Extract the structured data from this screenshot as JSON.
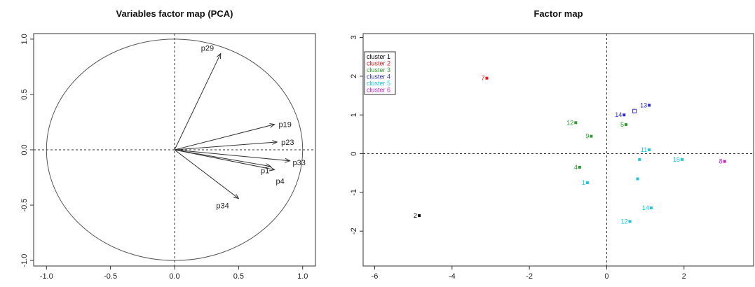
{
  "chart_data": [
    {
      "type": "scatter",
      "title": "Variables factor map (PCA)",
      "xlim": [
        -1.1,
        1.1
      ],
      "ylim": [
        -1.05,
        1.05
      ],
      "xticks": [
        "-1.0",
        "-0.5",
        "0.0",
        "0.5",
        "1.0"
      ],
      "yticks": [
        "-1.0",
        "-0.5",
        "0.0",
        "0.5",
        "1.0"
      ],
      "xtick_values": [
        -1.0,
        -0.5,
        0.0,
        0.5,
        1.0
      ],
      "ytick_values": [
        -1.0,
        -0.5,
        0.0,
        0.5,
        1.0
      ],
      "unit_circle": true,
      "reference_lines": [
        0,
        0
      ],
      "arrows": [
        {
          "name": "p29",
          "x": 0.36,
          "y": 0.87
        },
        {
          "name": "p19",
          "x": 0.78,
          "y": 0.23
        },
        {
          "name": "p23",
          "x": 0.8,
          "y": 0.07
        },
        {
          "name": "p33",
          "x": 0.9,
          "y": -0.1
        },
        {
          "name": "p1",
          "x": 0.75,
          "y": -0.15
        },
        {
          "name": "p4",
          "x": 0.78,
          "y": -0.18
        },
        {
          "name": "p34",
          "x": 0.5,
          "y": -0.44
        }
      ]
    },
    {
      "type": "scatter",
      "title": "Factor map",
      "xlim": [
        -6.3,
        3.8
      ],
      "ylim": [
        -2.9,
        3.1
      ],
      "xticks": [
        "-6",
        "-4",
        "-2",
        "0",
        "2"
      ],
      "yticks": [
        "-2",
        "-1",
        "0",
        "1",
        "2",
        "3"
      ],
      "xtick_values": [
        -6,
        -4,
        -2,
        0,
        2
      ],
      "ytick_values": [
        -2,
        -1,
        0,
        1,
        2,
        3
      ],
      "reference_lines": [
        0,
        0
      ],
      "legend": {
        "position": "top-left",
        "entries": [
          {
            "label": "cluster 1",
            "color": "#000000"
          },
          {
            "label": "cluster 2",
            "color": "#e41a1c"
          },
          {
            "label": "cluster 3",
            "color": "#2ca02c"
          },
          {
            "label": "cluster 4",
            "color": "#2b2bd6"
          },
          {
            "label": "cluster 5",
            "color": "#19c8dc"
          },
          {
            "label": "cluster 6",
            "color": "#d21ed2"
          }
        ]
      },
      "series": [
        {
          "name": "cluster 1",
          "color": "#000000",
          "points": [
            {
              "label": "2",
              "x": -4.85,
              "y": -1.6
            }
          ]
        },
        {
          "name": "cluster 2",
          "color": "#e41a1c",
          "points": [
            {
              "label": "7",
              "x": -3.1,
              "y": 1.95
            }
          ]
        },
        {
          "name": "cluster 3",
          "color": "#2ca02c",
          "points": [
            {
              "label": "12",
              "x": -0.8,
              "y": 0.8
            },
            {
              "label": "9",
              "x": -0.4,
              "y": 0.45
            },
            {
              "label": "5",
              "x": 0.5,
              "y": 0.75
            },
            {
              "label": "4",
              "x": -0.7,
              "y": -0.35
            }
          ]
        },
        {
          "name": "cluster 4",
          "color": "#2b2bd6",
          "points": [
            {
              "label": "14",
              "x": 0.45,
              "y": 1.0
            },
            {
              "label": "",
              "x": 0.72,
              "y": 1.1
            },
            {
              "label": "13",
              "x": 1.1,
              "y": 1.25
            }
          ]
        },
        {
          "name": "cluster 5",
          "color": "#19c8dc",
          "points": [
            {
              "label": "1",
              "x": -0.5,
              "y": -0.75
            },
            {
              "label": "11",
              "x": 1.1,
              "y": 0.1
            },
            {
              "label": "",
              "x": 0.85,
              "y": -0.15
            },
            {
              "label": "15",
              "x": 1.95,
              "y": -0.15
            },
            {
              "label": "",
              "x": 0.8,
              "y": -0.65
            },
            {
              "label": "14",
              "x": 1.15,
              "y": -1.4
            },
            {
              "label": "12",
              "x": 0.6,
              "y": -1.75
            }
          ]
        },
        {
          "name": "cluster 6",
          "color": "#d21ed2",
          "points": [
            {
              "label": "8",
              "x": 3.05,
              "y": -0.2
            }
          ]
        }
      ]
    }
  ]
}
